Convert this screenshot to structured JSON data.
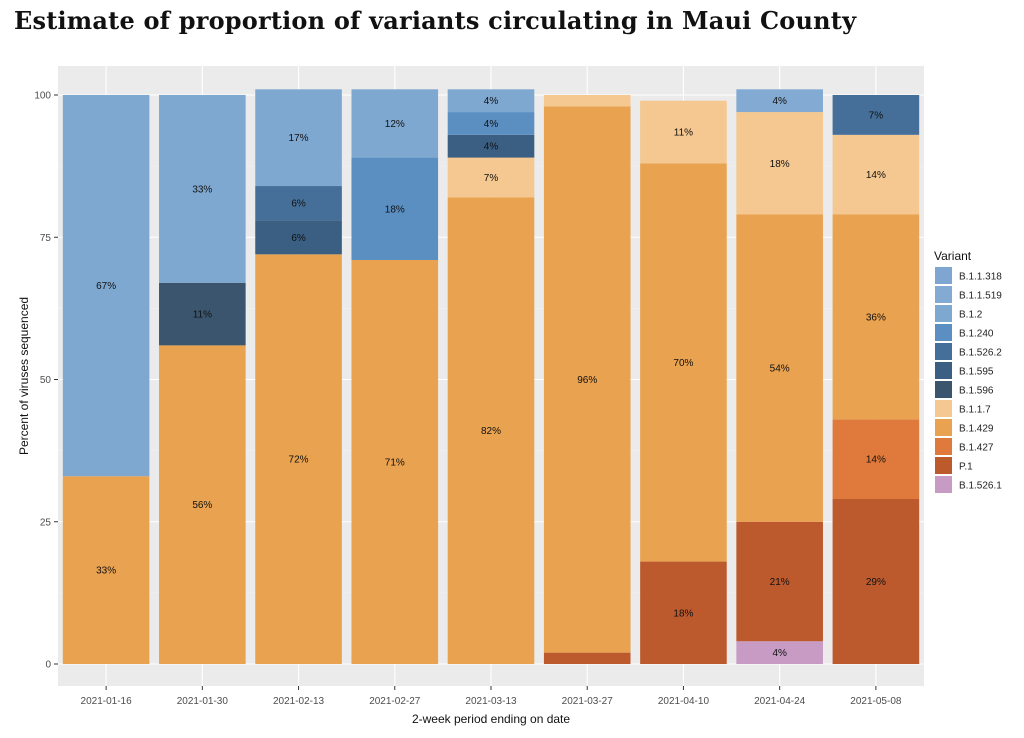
{
  "title": "Estimate of proportion of variants circulating in Maui County",
  "chart_data": {
    "type": "bar",
    "stacked": true,
    "xlabel": "2-week period ending on date",
    "ylabel": "Percent of viruses sequenced",
    "ylim": [
      0,
      100
    ],
    "yticks": [
      0,
      25,
      50,
      75,
      100
    ],
    "grid": true,
    "legend_title": "Variant",
    "legend_position": "right",
    "categories": [
      "2021-01-16",
      "2021-01-30",
      "2021-02-13",
      "2021-02-27",
      "2021-03-13",
      "2021-03-27",
      "2021-04-10",
      "2021-04-24",
      "2021-05-08"
    ],
    "series": [
      {
        "name": "B.1.1.318",
        "color": "#7ea6d0",
        "values": [
          0,
          0,
          0,
          0,
          0,
          0,
          0,
          0,
          0
        ]
      },
      {
        "name": "B.1.1.519",
        "color": "#82aad2",
        "values": [
          0,
          0,
          0,
          0,
          0,
          0,
          0,
          4,
          0
        ]
      },
      {
        "name": "B.1.2",
        "color": "#7fa8d0",
        "values": [
          67,
          33,
          17,
          12,
          4,
          0,
          0,
          0,
          0
        ]
      },
      {
        "name": "B.1.240",
        "color": "#5b8fc2",
        "values": [
          0,
          0,
          0,
          18,
          4,
          0,
          0,
          0,
          0
        ]
      },
      {
        "name": "B.1.526.2",
        "color": "#456f98",
        "values": [
          0,
          0,
          6,
          0,
          0,
          0,
          0,
          0,
          7
        ]
      },
      {
        "name": "B.1.595",
        "color": "#3a5f82",
        "values": [
          0,
          0,
          6,
          0,
          4,
          0,
          0,
          0,
          0
        ]
      },
      {
        "name": "B.1.596",
        "color": "#3b556f",
        "values": [
          0,
          11,
          0,
          0,
          0,
          0,
          0,
          0,
          0
        ]
      },
      {
        "name": "B.1.1.7",
        "color": "#f4c890",
        "values": [
          0,
          0,
          0,
          0,
          7,
          2,
          11,
          18,
          14
        ]
      },
      {
        "name": "B.1.429",
        "color": "#e9a24f",
        "values": [
          33,
          56,
          72,
          71,
          82,
          96,
          70,
          54,
          36
        ]
      },
      {
        "name": "B.1.427",
        "color": "#e07a3c",
        "values": [
          0,
          0,
          0,
          0,
          0,
          0,
          0,
          0,
          14
        ]
      },
      {
        "name": "P.1",
        "color": "#bc5a2e",
        "values": [
          0,
          0,
          0,
          0,
          0,
          2,
          18,
          21,
          29
        ]
      },
      {
        "name": "B.1.526.1",
        "color": "#c79bc4",
        "values": [
          0,
          0,
          0,
          0,
          0,
          0,
          0,
          4,
          0
        ]
      }
    ],
    "segment_labels": [
      [
        [
          "B.1.429",
          33,
          "33%"
        ],
        [
          "B.1.2",
          67,
          "67%"
        ]
      ],
      [
        [
          "B.1.429",
          56,
          "56%"
        ],
        [
          "B.1.596",
          11,
          "11%"
        ],
        [
          "B.1.2",
          33,
          "33%"
        ]
      ],
      [
        [
          "B.1.429",
          72,
          "72%"
        ],
        [
          "B.1.595",
          6,
          "6%"
        ],
        [
          "B.1.526.2",
          6,
          "6%"
        ],
        [
          "B.1.2",
          17,
          "17%"
        ]
      ],
      [
        [
          "B.1.429",
          71,
          "71%"
        ],
        [
          "B.1.240",
          18,
          "18%"
        ],
        [
          "B.1.2",
          12,
          "12%"
        ]
      ],
      [
        [
          "B.1.429",
          82,
          "82%"
        ],
        [
          "B.1.1.7",
          7,
          "7%"
        ],
        [
          "B.1.595",
          4,
          "4%"
        ],
        [
          "B.1.240",
          4,
          "4%"
        ],
        [
          "B.1.2",
          4,
          "4%"
        ]
      ],
      [
        [
          "P.1",
          2,
          ""
        ],
        [
          "B.1.429",
          96,
          "96%"
        ],
        [
          "B.1.1.7",
          2,
          ""
        ]
      ],
      [
        [
          "P.1",
          18,
          "18%"
        ],
        [
          "B.1.429",
          70,
          "70%"
        ],
        [
          "B.1.1.7",
          11,
          "11%"
        ]
      ],
      [
        [
          "B.1.526.1",
          4,
          "4%"
        ],
        [
          "P.1",
          21,
          "21%"
        ],
        [
          "B.1.429",
          54,
          "54%"
        ],
        [
          "B.1.1.7",
          18,
          "18%"
        ],
        [
          "B.1.1.519",
          4,
          "4%"
        ]
      ],
      [
        [
          "P.1",
          29,
          "29%"
        ],
        [
          "B.1.427",
          14,
          "14%"
        ],
        [
          "B.1.429",
          36,
          "36%"
        ],
        [
          "B.1.1.7",
          14,
          "14%"
        ],
        [
          "B.1.526.2",
          7,
          "7%"
        ]
      ]
    ]
  }
}
